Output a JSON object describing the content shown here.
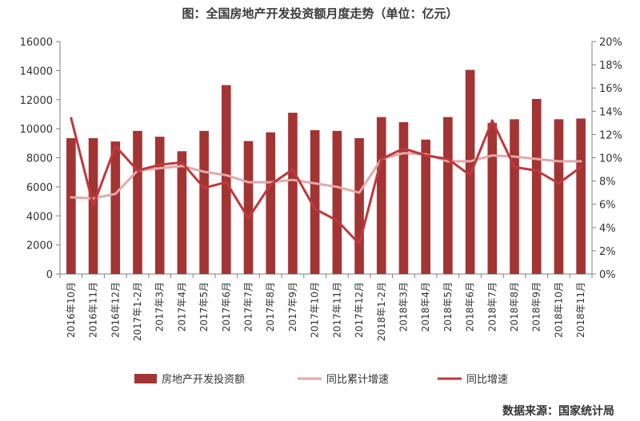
{
  "chart_data": {
    "type": "bar",
    "title": "图：全国房地产开发投资额月度走势（单位：亿元）",
    "source": "数据来源：国家统计局",
    "categories": [
      "2016年10月",
      "2016年11月",
      "2016年12月",
      "2017年1-2月",
      "2017年3月",
      "2017年4月",
      "2017年5月",
      "2017年6月",
      "2017年7月",
      "2017年8月",
      "2017年9月",
      "2017年10月",
      "2017年11月",
      "2017年12月",
      "2018年1-2月",
      "2018年3月",
      "2018年4月",
      "2018年5月",
      "2018年6月",
      "2018年7月",
      "2018年8月",
      "2018年9月",
      "2018年10月",
      "2018年11月"
    ],
    "y_left": {
      "min": 0,
      "max": 16000,
      "step": 2000,
      "ticks": [
        "0",
        "2000",
        "4000",
        "6000",
        "8000",
        "10000",
        "12000",
        "14000",
        "16000"
      ]
    },
    "y_right": {
      "min": 0,
      "max": 20,
      "step": 2,
      "ticks": [
        "0%",
        "2%",
        "4%",
        "6%",
        "8%",
        "10%",
        "12%",
        "14%",
        "16%",
        "18%",
        "20%"
      ]
    },
    "series": [
      {
        "name": "房地产开发投资额",
        "type": "bar",
        "axis": "left",
        "color": "#a33434",
        "values": [
          9350,
          9350,
          9120,
          9850,
          9450,
          8450,
          9850,
          13000,
          9150,
          9750,
          11100,
          9900,
          9850,
          9350,
          10800,
          10450,
          9250,
          10800,
          14050,
          10400,
          10650,
          12050,
          10650,
          10700
        ]
      },
      {
        "name": "同比累计增速",
        "type": "line",
        "axis": "right",
        "color": "#e3a8a8",
        "values": [
          6.6,
          6.5,
          6.9,
          8.9,
          9.1,
          9.3,
          8.8,
          8.5,
          7.9,
          7.9,
          8.1,
          7.8,
          7.5,
          7.0,
          9.9,
          10.4,
          10.3,
          9.7,
          9.7,
          10.2,
          10.1,
          9.9,
          9.7,
          9.7
        ]
      },
      {
        "name": "同比增速",
        "type": "line",
        "axis": "right",
        "color": "#c0383d",
        "values": [
          13.4,
          5.9,
          11.0,
          8.9,
          9.4,
          9.6,
          7.4,
          7.9,
          4.8,
          7.7,
          9.0,
          5.6,
          4.6,
          2.6,
          9.9,
          10.8,
          10.2,
          9.9,
          8.5,
          13.2,
          9.2,
          8.9,
          7.8,
          9.2
        ]
      }
    ]
  }
}
